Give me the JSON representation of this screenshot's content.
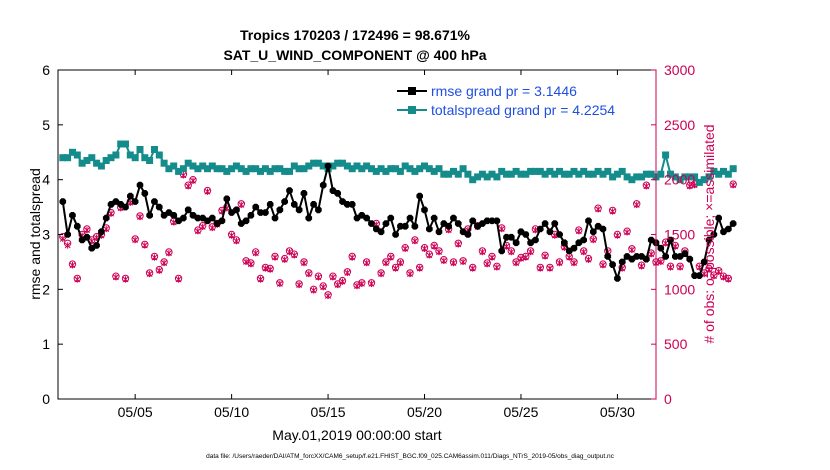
{
  "colors": {
    "rmse": "#000000",
    "spread": "#148c8c",
    "obs": "#cc0055",
    "legend_text": "#1f4fe0",
    "axis": "#000000",
    "right_axis": "#cc0055"
  },
  "chart_data": {
    "type": "line",
    "title_line1": "Tropics 170203 / 172496 = 98.671%",
    "title_line2": "SAT_U_WIND_COMPONENT @ 400 hPa",
    "xlabel": "May.01,2019 00:00:00 start",
    "ylabel_left": "rmse and totalspread",
    "ylabel_right": "# of obs: o=possible; ×=assimilated",
    "footer": "data file: /Users/raeder/DAI/ATM_forcXX/CAM6_setup/f.e21.FHIST_BGC.f09_025.CAM6assim.011/Diags_NTrS_2019-05/obs_diag_output.nc",
    "xlim": [
      1.0,
      32.0
    ],
    "ylim_left": [
      0,
      6
    ],
    "ylim_right": [
      0,
      3000
    ],
    "left_ticks": [
      "0",
      "1",
      "2",
      "3",
      "4",
      "5",
      "6"
    ],
    "right_ticks": [
      "0",
      "500",
      "1000",
      "1500",
      "2000",
      "2500",
      "3000"
    ],
    "x_ticks": [
      {
        "day": 5,
        "label": "05/05"
      },
      {
        "day": 10,
        "label": "05/10"
      },
      {
        "day": 15,
        "label": "05/15"
      },
      {
        "day": 20,
        "label": "05/20"
      },
      {
        "day": 25,
        "label": "05/25"
      },
      {
        "day": 30,
        "label": "05/30"
      }
    ],
    "legend": [
      {
        "name": "rmse grand pr = 3.1446",
        "series": "rmse"
      },
      {
        "name": "totalspread grand pr = 4.2254",
        "series": "totalspread"
      }
    ],
    "legend_position": "top-right",
    "start_day": 1.25,
    "step_days": 0.25,
    "series": [
      {
        "name": "rmse",
        "axis": "left",
        "values": [
          3.6,
          3.0,
          3.35,
          3.15,
          2.9,
          2.95,
          2.75,
          2.8,
          3.05,
          3.3,
          3.55,
          3.6,
          3.55,
          3.5,
          3.7,
          3.6,
          3.9,
          3.75,
          3.35,
          3.6,
          3.5,
          3.35,
          3.4,
          3.35,
          3.25,
          3.3,
          3.45,
          3.35,
          3.3,
          3.3,
          3.25,
          3.3,
          3.2,
          3.25,
          3.65,
          3.4,
          3.45,
          3.2,
          3.25,
          3.35,
          3.5,
          3.4,
          3.4,
          3.55,
          3.3,
          3.45,
          3.6,
          3.8,
          3.55,
          3.45,
          3.75,
          3.3,
          3.55,
          3.45,
          3.9,
          4.25,
          3.8,
          3.75,
          3.6,
          3.55,
          3.55,
          3.3,
          3.35,
          3.3,
          3.2,
          3.1,
          3.05,
          3.2,
          3.3,
          3.0,
          3.15,
          3.15,
          3.3,
          3.15,
          3.7,
          3.45,
          3.1,
          3.3,
          3.05,
          3.2,
          3.15,
          3.3,
          3.2,
          3.05,
          3.0,
          3.25,
          3.15,
          3.2,
          3.25,
          3.25,
          3.25,
          2.7,
          2.95,
          2.95,
          2.85,
          3.05,
          3.0,
          2.85,
          2.9,
          3.1,
          3.2,
          3.05,
          3.2,
          3.0,
          2.85,
          2.7,
          2.75,
          2.85,
          2.9,
          3.25,
          3.05,
          3.15,
          3.1,
          2.6,
          2.45,
          2.2,
          2.5,
          2.6,
          2.55,
          2.6,
          2.6,
          2.55,
          2.9,
          2.85,
          2.75,
          2.6,
          2.9,
          2.6,
          2.6,
          2.65,
          2.55,
          2.25,
          2.25,
          2.5,
          2.9,
          3.0,
          3.3,
          3.05,
          3.1,
          3.2
        ]
      },
      {
        "name": "totalspread",
        "axis": "left",
        "values": [
          4.4,
          4.4,
          4.5,
          4.45,
          4.3,
          4.35,
          4.4,
          4.3,
          4.25,
          4.35,
          4.4,
          4.45,
          4.65,
          4.65,
          4.45,
          4.4,
          4.55,
          4.4,
          4.35,
          4.55,
          4.45,
          4.3,
          4.2,
          4.25,
          4.15,
          4.2,
          4.3,
          4.25,
          4.2,
          4.25,
          4.2,
          4.25,
          4.2,
          4.2,
          4.15,
          4.2,
          4.25,
          4.2,
          4.15,
          4.2,
          4.2,
          4.15,
          4.2,
          4.15,
          4.2,
          4.2,
          4.15,
          4.15,
          4.25,
          4.2,
          4.2,
          4.25,
          4.3,
          4.3,
          4.25,
          4.2,
          4.25,
          4.3,
          4.3,
          4.25,
          4.2,
          4.25,
          4.2,
          4.25,
          4.2,
          4.15,
          4.2,
          4.15,
          4.2,
          4.2,
          4.15,
          4.25,
          4.2,
          4.15,
          4.2,
          4.25,
          4.2,
          4.15,
          4.2,
          4.1,
          4.1,
          4.15,
          4.1,
          4.2,
          4.1,
          4.0,
          4.05,
          4.1,
          4.05,
          4.1,
          4.05,
          4.15,
          4.1,
          4.1,
          4.15,
          4.1,
          4.1,
          4.15,
          4.15,
          4.15,
          4.1,
          4.15,
          4.1,
          4.15,
          4.1,
          4.1,
          4.15,
          4.1,
          4.15,
          4.1,
          4.1,
          4.15,
          4.1,
          4.15,
          4.05,
          4.1,
          4.15,
          4.05,
          4.0,
          4.05,
          4.05,
          4.1,
          4.1,
          4.05,
          4.1,
          4.45,
          4.1,
          4.05,
          4.0,
          4.05,
          4.05,
          4.05,
          3.95,
          4.0,
          4.05,
          4.15,
          4.1,
          4.15,
          4.1,
          4.2
        ]
      },
      {
        "name": "obs_possible",
        "axis": "right",
        "values": [
          1480,
          1420,
          1230,
          1100,
          1500,
          1550,
          1450,
          1480,
          1500,
          1560,
          1700,
          1120,
          1750,
          1100,
          1800,
          1460,
          1670,
          1410,
          1150,
          1300,
          1180,
          1250,
          1340,
          1620,
          1100,
          2050,
          1950,
          2000,
          1540,
          1580,
          1900,
          1570,
          1600,
          1720,
          1750,
          1500,
          1450,
          1780,
          1260,
          1240,
          1340,
          1100,
          1200,
          1190,
          1300,
          1060,
          1280,
          1350,
          1320,
          1050,
          1250,
          1150,
          1000,
          1120,
          1030,
          950,
          1120,
          1050,
          1080,
          1160,
          1300,
          1040,
          1060,
          1250,
          1060,
          1600,
          1150,
          1250,
          1300,
          1200,
          1250,
          1380,
          1150,
          1450,
          1200,
          1380,
          1320,
          1400,
          1350,
          1270,
          1550,
          1250,
          1420,
          1260,
          1550,
          1200,
          1580,
          1350,
          1240,
          1300,
          1210,
          1560,
          1400,
          1350,
          1250,
          1290,
          1300,
          1350,
          1550,
          1200,
          1310,
          1200,
          1500,
          1250,
          1390,
          1300,
          1250,
          1540,
          1350,
          1280,
          1460,
          1740,
          1230,
          1350,
          1720,
          1500,
          1200,
          1530,
          1370,
          1780,
          1220,
          1950,
          1330,
          1250,
          1260,
          1430,
          1210,
          1400,
          1210,
          1350,
          1950,
          1960,
          1210,
          1150,
          1190,
          1130,
          1170,
          1120,
          1100,
          1960
        ]
      },
      {
        "name": "obs_assimilated",
        "axis": "right",
        "values": [
          1460,
          1400,
          1220,
          1090,
          1490,
          1540,
          1440,
          1470,
          1490,
          1550,
          1690,
          1110,
          1740,
          1090,
          1790,
          1450,
          1660,
          1400,
          1140,
          1290,
          1170,
          1240,
          1330,
          1610,
          1090,
          2040,
          1940,
          1990,
          1530,
          1570,
          1890,
          1560,
          1590,
          1710,
          1740,
          1490,
          1440,
          1770,
          1250,
          1230,
          1330,
          1090,
          1190,
          1180,
          1290,
          1050,
          1270,
          1340,
          1310,
          1040,
          1240,
          1140,
          990,
          1110,
          1020,
          940,
          1110,
          1040,
          1070,
          1150,
          1290,
          1030,
          1050,
          1240,
          1050,
          1590,
          1140,
          1240,
          1290,
          1190,
          1240,
          1370,
          1140,
          1440,
          1190,
          1370,
          1310,
          1390,
          1340,
          1260,
          1540,
          1240,
          1410,
          1250,
          1540,
          1190,
          1570,
          1340,
          1230,
          1290,
          1200,
          1550,
          1390,
          1340,
          1240,
          1280,
          1290,
          1340,
          1540,
          1190,
          1300,
          1190,
          1490,
          1240,
          1380,
          1290,
          1240,
          1530,
          1340,
          1270,
          1450,
          1730,
          1220,
          1340,
          1710,
          1490,
          1190,
          1520,
          1360,
          1770,
          1210,
          1940,
          1320,
          1240,
          1250,
          1420,
          1200,
          1390,
          1200,
          1340,
          1940,
          1950,
          1200,
          1140,
          1180,
          1120,
          1160,
          1110,
          1090,
          1950
        ]
      }
    ]
  }
}
